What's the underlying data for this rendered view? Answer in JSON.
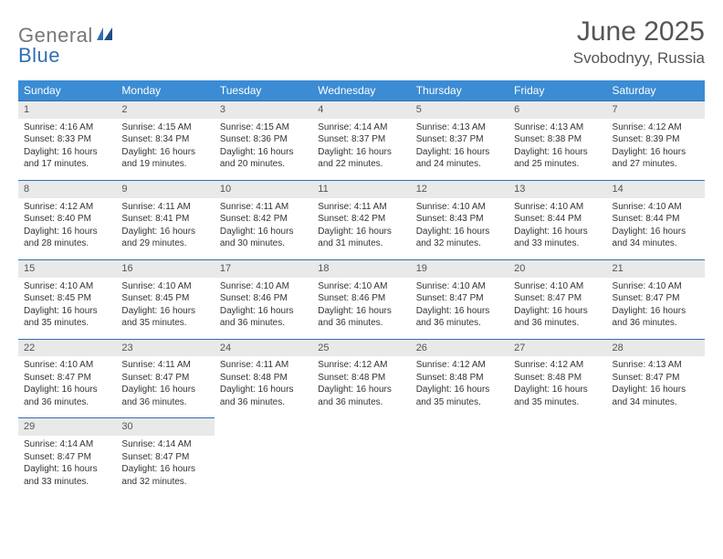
{
  "logo": {
    "word1": "General",
    "word2": "Blue"
  },
  "title": "June 2025",
  "location": "Svobodnyy, Russia",
  "colors": {
    "header_bg": "#3b8cd4",
    "header_text": "#ffffff",
    "daynum_bg": "#e9e9e9",
    "daynum_border": "#2f6fb3",
    "body_text": "#333333",
    "title_text": "#555555",
    "logo_gray": "#777777",
    "logo_blue": "#2f6fb3"
  },
  "weekdays": [
    "Sunday",
    "Monday",
    "Tuesday",
    "Wednesday",
    "Thursday",
    "Friday",
    "Saturday"
  ],
  "weeks": [
    [
      {
        "n": "1",
        "sunrise": "Sunrise: 4:16 AM",
        "sunset": "Sunset: 8:33 PM",
        "dl1": "Daylight: 16 hours",
        "dl2": "and 17 minutes."
      },
      {
        "n": "2",
        "sunrise": "Sunrise: 4:15 AM",
        "sunset": "Sunset: 8:34 PM",
        "dl1": "Daylight: 16 hours",
        "dl2": "and 19 minutes."
      },
      {
        "n": "3",
        "sunrise": "Sunrise: 4:15 AM",
        "sunset": "Sunset: 8:36 PM",
        "dl1": "Daylight: 16 hours",
        "dl2": "and 20 minutes."
      },
      {
        "n": "4",
        "sunrise": "Sunrise: 4:14 AM",
        "sunset": "Sunset: 8:37 PM",
        "dl1": "Daylight: 16 hours",
        "dl2": "and 22 minutes."
      },
      {
        "n": "5",
        "sunrise": "Sunrise: 4:13 AM",
        "sunset": "Sunset: 8:37 PM",
        "dl1": "Daylight: 16 hours",
        "dl2": "and 24 minutes."
      },
      {
        "n": "6",
        "sunrise": "Sunrise: 4:13 AM",
        "sunset": "Sunset: 8:38 PM",
        "dl1": "Daylight: 16 hours",
        "dl2": "and 25 minutes."
      },
      {
        "n": "7",
        "sunrise": "Sunrise: 4:12 AM",
        "sunset": "Sunset: 8:39 PM",
        "dl1": "Daylight: 16 hours",
        "dl2": "and 27 minutes."
      }
    ],
    [
      {
        "n": "8",
        "sunrise": "Sunrise: 4:12 AM",
        "sunset": "Sunset: 8:40 PM",
        "dl1": "Daylight: 16 hours",
        "dl2": "and 28 minutes."
      },
      {
        "n": "9",
        "sunrise": "Sunrise: 4:11 AM",
        "sunset": "Sunset: 8:41 PM",
        "dl1": "Daylight: 16 hours",
        "dl2": "and 29 minutes."
      },
      {
        "n": "10",
        "sunrise": "Sunrise: 4:11 AM",
        "sunset": "Sunset: 8:42 PM",
        "dl1": "Daylight: 16 hours",
        "dl2": "and 30 minutes."
      },
      {
        "n": "11",
        "sunrise": "Sunrise: 4:11 AM",
        "sunset": "Sunset: 8:42 PM",
        "dl1": "Daylight: 16 hours",
        "dl2": "and 31 minutes."
      },
      {
        "n": "12",
        "sunrise": "Sunrise: 4:10 AM",
        "sunset": "Sunset: 8:43 PM",
        "dl1": "Daylight: 16 hours",
        "dl2": "and 32 minutes."
      },
      {
        "n": "13",
        "sunrise": "Sunrise: 4:10 AM",
        "sunset": "Sunset: 8:44 PM",
        "dl1": "Daylight: 16 hours",
        "dl2": "and 33 minutes."
      },
      {
        "n": "14",
        "sunrise": "Sunrise: 4:10 AM",
        "sunset": "Sunset: 8:44 PM",
        "dl1": "Daylight: 16 hours",
        "dl2": "and 34 minutes."
      }
    ],
    [
      {
        "n": "15",
        "sunrise": "Sunrise: 4:10 AM",
        "sunset": "Sunset: 8:45 PM",
        "dl1": "Daylight: 16 hours",
        "dl2": "and 35 minutes."
      },
      {
        "n": "16",
        "sunrise": "Sunrise: 4:10 AM",
        "sunset": "Sunset: 8:45 PM",
        "dl1": "Daylight: 16 hours",
        "dl2": "and 35 minutes."
      },
      {
        "n": "17",
        "sunrise": "Sunrise: 4:10 AM",
        "sunset": "Sunset: 8:46 PM",
        "dl1": "Daylight: 16 hours",
        "dl2": "and 36 minutes."
      },
      {
        "n": "18",
        "sunrise": "Sunrise: 4:10 AM",
        "sunset": "Sunset: 8:46 PM",
        "dl1": "Daylight: 16 hours",
        "dl2": "and 36 minutes."
      },
      {
        "n": "19",
        "sunrise": "Sunrise: 4:10 AM",
        "sunset": "Sunset: 8:47 PM",
        "dl1": "Daylight: 16 hours",
        "dl2": "and 36 minutes."
      },
      {
        "n": "20",
        "sunrise": "Sunrise: 4:10 AM",
        "sunset": "Sunset: 8:47 PM",
        "dl1": "Daylight: 16 hours",
        "dl2": "and 36 minutes."
      },
      {
        "n": "21",
        "sunrise": "Sunrise: 4:10 AM",
        "sunset": "Sunset: 8:47 PM",
        "dl1": "Daylight: 16 hours",
        "dl2": "and 36 minutes."
      }
    ],
    [
      {
        "n": "22",
        "sunrise": "Sunrise: 4:10 AM",
        "sunset": "Sunset: 8:47 PM",
        "dl1": "Daylight: 16 hours",
        "dl2": "and 36 minutes."
      },
      {
        "n": "23",
        "sunrise": "Sunrise: 4:11 AM",
        "sunset": "Sunset: 8:47 PM",
        "dl1": "Daylight: 16 hours",
        "dl2": "and 36 minutes."
      },
      {
        "n": "24",
        "sunrise": "Sunrise: 4:11 AM",
        "sunset": "Sunset: 8:48 PM",
        "dl1": "Daylight: 16 hours",
        "dl2": "and 36 minutes."
      },
      {
        "n": "25",
        "sunrise": "Sunrise: 4:12 AM",
        "sunset": "Sunset: 8:48 PM",
        "dl1": "Daylight: 16 hours",
        "dl2": "and 36 minutes."
      },
      {
        "n": "26",
        "sunrise": "Sunrise: 4:12 AM",
        "sunset": "Sunset: 8:48 PM",
        "dl1": "Daylight: 16 hours",
        "dl2": "and 35 minutes."
      },
      {
        "n": "27",
        "sunrise": "Sunrise: 4:12 AM",
        "sunset": "Sunset: 8:48 PM",
        "dl1": "Daylight: 16 hours",
        "dl2": "and 35 minutes."
      },
      {
        "n": "28",
        "sunrise": "Sunrise: 4:13 AM",
        "sunset": "Sunset: 8:47 PM",
        "dl1": "Daylight: 16 hours",
        "dl2": "and 34 minutes."
      }
    ],
    [
      {
        "n": "29",
        "sunrise": "Sunrise: 4:14 AM",
        "sunset": "Sunset: 8:47 PM",
        "dl1": "Daylight: 16 hours",
        "dl2": "and 33 minutes."
      },
      {
        "n": "30",
        "sunrise": "Sunrise: 4:14 AM",
        "sunset": "Sunset: 8:47 PM",
        "dl1": "Daylight: 16 hours",
        "dl2": "and 32 minutes."
      },
      null,
      null,
      null,
      null,
      null
    ]
  ]
}
